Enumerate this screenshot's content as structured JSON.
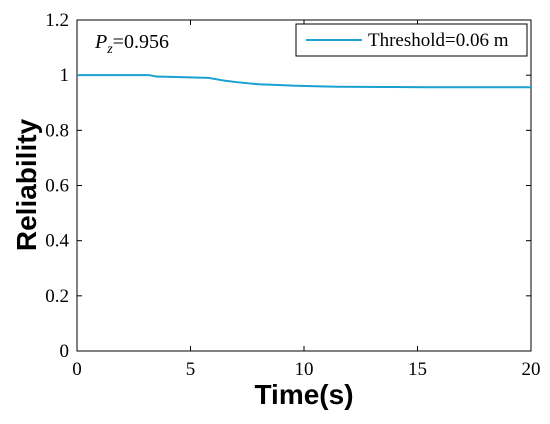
{
  "chart_data": {
    "type": "line",
    "xlabel": "Time(s)",
    "ylabel": "Reliability",
    "xlim": [
      0,
      20
    ],
    "ylim": [
      0,
      1.2
    ],
    "x_ticks": [
      "0",
      "5",
      "10",
      "15",
      "20"
    ],
    "y_ticks": [
      "0",
      "0.2",
      "0.4",
      "0.6",
      "0.8",
      "1",
      "1.2"
    ],
    "grid": false,
    "legend_position": "top-right",
    "annotation": {
      "symbol": "P",
      "subscript": "z",
      "value_text": "=0.956"
    },
    "series": [
      {
        "name": "Threshold=0.06 m",
        "color": "#1ba1d1",
        "x": [
          0,
          3.2,
          3.5,
          5.8,
          6.5,
          7.0,
          7.6,
          8.0,
          9.0,
          9.5,
          10.5,
          11.5,
          14.0,
          15.5,
          20
        ],
        "y": [
          1.0,
          1.0,
          0.995,
          0.99,
          0.98,
          0.975,
          0.97,
          0.967,
          0.964,
          0.962,
          0.96,
          0.958,
          0.957,
          0.956,
          0.956
        ]
      }
    ]
  }
}
